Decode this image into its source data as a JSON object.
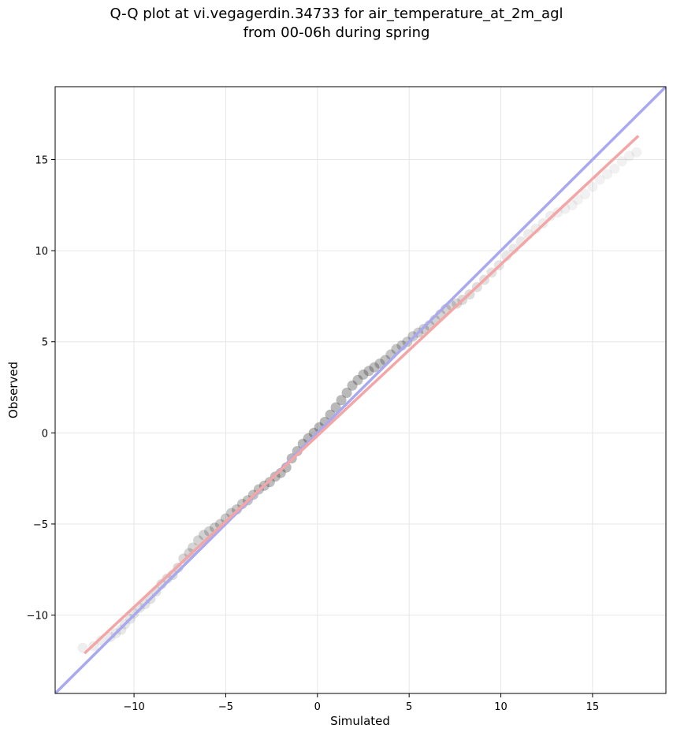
{
  "title": {
    "line1": "Q-Q plot at vi.vegagerdin.34733 for air_temperature_at_2m_agl",
    "line2": "from 00-06h during spring"
  },
  "chart_data": {
    "type": "scatter",
    "title": "Q-Q plot at vi.vegagerdin.34733 for air_temperature_at_2m_agl from 00-06h during spring",
    "xlabel": "Simulated",
    "ylabel": "Observed",
    "xlim": [
      -14.3,
      19.0
    ],
    "ylim": [
      -14.3,
      19.0
    ],
    "xticks": [
      -10,
      -5,
      0,
      5,
      10,
      15
    ],
    "yticks": [
      -10,
      -5,
      0,
      5,
      10,
      15
    ],
    "xtick_labels": [
      "−10",
      "−5",
      "0",
      "5",
      "10",
      "15"
    ],
    "ytick_labels": [
      "−10",
      "−5",
      "0",
      "5",
      "10",
      "15"
    ],
    "grid": true,
    "colors": {
      "points": "#333333",
      "identity_line": "#a9a9f0",
      "fit_line": "#f4a6a6"
    },
    "identity_line": {
      "x": [
        -14.3,
        19.0
      ],
      "y": [
        -14.3,
        19.0
      ]
    },
    "fit_line": {
      "x": [
        -12.7,
        17.5
      ],
      "y": [
        -12.1,
        16.3
      ]
    },
    "quantile_points": {
      "x": [
        -12.8,
        -12.2,
        -11.8,
        -11.3,
        -11.0,
        -10.7,
        -10.5,
        -10.2,
        -10.0,
        -9.7,
        -9.4,
        -9.1,
        -8.8,
        -8.5,
        -8.2,
        -7.9,
        -7.6,
        -7.3,
        -7.0,
        -6.8,
        -6.5,
        -6.2,
        -5.9,
        -5.6,
        -5.3,
        -5.0,
        -4.7,
        -4.4,
        -4.1,
        -3.8,
        -3.5,
        -3.2,
        -2.9,
        -2.6,
        -2.3,
        -2.0,
        -1.7,
        -1.4,
        -1.1,
        -0.8,
        -0.5,
        -0.2,
        0.1,
        0.4,
        0.7,
        1.0,
        1.3,
        1.6,
        1.9,
        2.2,
        2.5,
        2.8,
        3.1,
        3.4,
        3.7,
        4.0,
        4.3,
        4.6,
        4.9,
        5.2,
        5.5,
        5.8,
        6.1,
        6.4,
        6.7,
        7.0,
        7.3,
        7.6,
        7.9,
        8.3,
        8.7,
        9.1,
        9.5,
        9.9,
        10.3,
        10.7,
        11.1,
        11.5,
        11.9,
        12.3,
        12.7,
        13.1,
        13.5,
        13.9,
        14.2,
        14.6,
        15.0,
        15.4,
        15.8,
        16.2,
        16.6,
        17.0,
        17.4
      ],
      "y": [
        -11.8,
        -11.7,
        -11.4,
        -11.2,
        -11.0,
        -10.8,
        -10.5,
        -10.2,
        -9.9,
        -9.6,
        -9.4,
        -9.1,
        -8.7,
        -8.3,
        -8.0,
        -7.8,
        -7.4,
        -6.9,
        -6.6,
        -6.3,
        -5.9,
        -5.6,
        -5.4,
        -5.2,
        -5.0,
        -4.7,
        -4.4,
        -4.2,
        -3.9,
        -3.7,
        -3.4,
        -3.1,
        -2.9,
        -2.7,
        -2.4,
        -2.2,
        -1.9,
        -1.4,
        -1.0,
        -0.6,
        -0.3,
        0.0,
        0.3,
        0.6,
        1.0,
        1.4,
        1.8,
        2.2,
        2.6,
        2.9,
        3.2,
        3.4,
        3.6,
        3.8,
        4.0,
        4.3,
        4.6,
        4.8,
        5.0,
        5.3,
        5.5,
        5.7,
        5.9,
        6.2,
        6.5,
        6.8,
        7.0,
        7.1,
        7.3,
        7.6,
        8.0,
        8.4,
        8.8,
        9.2,
        9.7,
        10.1,
        10.5,
        10.9,
        11.2,
        11.5,
        11.9,
        12.1,
        12.3,
        12.5,
        12.8,
        13.1,
        13.5,
        13.9,
        14.2,
        14.5,
        14.9,
        15.2,
        15.4
      ]
    }
  }
}
